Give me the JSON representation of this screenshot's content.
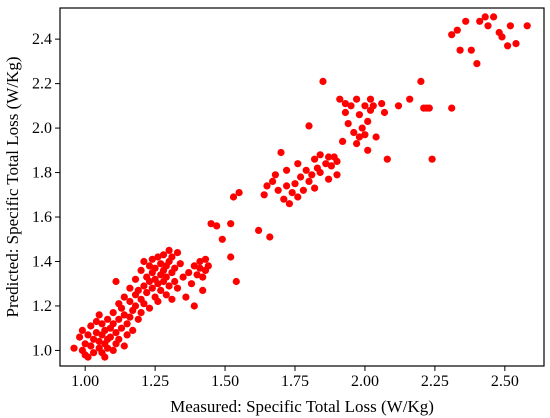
{
  "chart_data": {
    "type": "scatter",
    "xlabel": "Measured: Specific Total Loss (W/Kg)",
    "ylabel": "Predicted: Specific Total Loss (W/Kg)",
    "xlim": [
      0.91,
      2.64
    ],
    "ylim": [
      0.93,
      2.54
    ],
    "xticks": [
      1.0,
      1.25,
      1.5,
      1.75,
      2.0,
      2.25,
      2.5
    ],
    "xtick_labels": [
      "1.00",
      "1.25",
      "1.50",
      "1.75",
      "2.00",
      "2.25",
      "2.50"
    ],
    "yticks": [
      1.0,
      1.2,
      1.4,
      1.6,
      1.8,
      2.0,
      2.2,
      2.4
    ],
    "ytick_labels": [
      "1.0",
      "1.2",
      "1.4",
      "1.6",
      "1.8",
      "2.0",
      "2.2",
      "2.4"
    ],
    "grid": false,
    "marker_color": "#ff0000",
    "points": [
      [
        0.96,
        1.01
      ],
      [
        0.98,
        1.06
      ],
      [
        0.99,
        1.09
      ],
      [
        0.99,
        1.0
      ],
      [
        1.0,
        0.98
      ],
      [
        1.0,
        1.03
      ],
      [
        1.01,
        1.07
      ],
      [
        1.01,
        0.97
      ],
      [
        1.02,
        1.02
      ],
      [
        1.02,
        1.11
      ],
      [
        1.03,
        1.05
      ],
      [
        1.03,
        0.99
      ],
      [
        1.04,
        1.08
      ],
      [
        1.04,
        1.13
      ],
      [
        1.05,
        1.01
      ],
      [
        1.05,
        1.04
      ],
      [
        1.05,
        1.16
      ],
      [
        1.06,
        0.99
      ],
      [
        1.06,
        1.07
      ],
      [
        1.06,
        1.12
      ],
      [
        1.07,
        1.03
      ],
      [
        1.07,
        1.09
      ],
      [
        1.07,
        0.97
      ],
      [
        1.08,
        1.05
      ],
      [
        1.08,
        1.14
      ],
      [
        1.08,
        1.01
      ],
      [
        1.09,
        1.1
      ],
      [
        1.09,
        1.06
      ],
      [
        1.1,
        1.0
      ],
      [
        1.1,
        1.12
      ],
      [
        1.1,
        1.17
      ],
      [
        1.11,
        1.03
      ],
      [
        1.11,
        1.08
      ],
      [
        1.11,
        1.31
      ],
      [
        1.12,
        1.14
      ],
      [
        1.12,
        1.21
      ],
      [
        1.12,
        1.05
      ],
      [
        1.13,
        1.1
      ],
      [
        1.13,
        1.19
      ],
      [
        1.14,
        1.02
      ],
      [
        1.14,
        1.16
      ],
      [
        1.14,
        1.24
      ],
      [
        1.15,
        1.12
      ],
      [
        1.15,
        1.07
      ],
      [
        1.16,
        1.22
      ],
      [
        1.16,
        1.28
      ],
      [
        1.16,
        1.15
      ],
      [
        1.17,
        1.18
      ],
      [
        1.17,
        1.09
      ],
      [
        1.18,
        1.25
      ],
      [
        1.18,
        1.2
      ],
      [
        1.18,
        1.32
      ],
      [
        1.19,
        1.14
      ],
      [
        1.19,
        1.27
      ],
      [
        1.2,
        1.23
      ],
      [
        1.2,
        1.17
      ],
      [
        1.2,
        1.36
      ],
      [
        1.21,
        1.29
      ],
      [
        1.21,
        1.21
      ],
      [
        1.21,
        1.4
      ],
      [
        1.22,
        1.33
      ],
      [
        1.22,
        1.26
      ],
      [
        1.23,
        1.38
      ],
      [
        1.23,
        1.19
      ],
      [
        1.23,
        1.31
      ],
      [
        1.24,
        1.35
      ],
      [
        1.24,
        1.28
      ],
      [
        1.24,
        1.41
      ],
      [
        1.25,
        1.32
      ],
      [
        1.25,
        1.24
      ],
      [
        1.25,
        1.37
      ],
      [
        1.26,
        1.3
      ],
      [
        1.26,
        1.42
      ],
      [
        1.26,
        1.22
      ],
      [
        1.27,
        1.34
      ],
      [
        1.27,
        1.39
      ],
      [
        1.27,
        1.27
      ],
      [
        1.28,
        1.31
      ],
      [
        1.28,
        1.43
      ],
      [
        1.28,
        1.36
      ],
      [
        1.29,
        1.25
      ],
      [
        1.29,
        1.38
      ],
      [
        1.29,
        1.33
      ],
      [
        1.3,
        1.4
      ],
      [
        1.3,
        1.29
      ],
      [
        1.3,
        1.45
      ],
      [
        1.31,
        1.35
      ],
      [
        1.31,
        1.42
      ],
      [
        1.31,
        1.23
      ],
      [
        1.32,
        1.37
      ],
      [
        1.32,
        1.31
      ],
      [
        1.33,
        1.44
      ],
      [
        1.33,
        1.28
      ],
      [
        1.34,
        1.39
      ],
      [
        1.35,
        1.33
      ],
      [
        1.36,
        1.24
      ],
      [
        1.37,
        1.35
      ],
      [
        1.38,
        1.3
      ],
      [
        1.39,
        1.38
      ],
      [
        1.39,
        1.2
      ],
      [
        1.4,
        1.34
      ],
      [
        1.41,
        1.37
      ],
      [
        1.41,
        1.4
      ],
      [
        1.42,
        1.33
      ],
      [
        1.42,
        1.27
      ],
      [
        1.43,
        1.36
      ],
      [
        1.43,
        1.41
      ],
      [
        1.44,
        1.38
      ],
      [
        1.45,
        1.57
      ],
      [
        1.47,
        1.56
      ],
      [
        1.49,
        1.5
      ],
      [
        1.52,
        1.42
      ],
      [
        1.52,
        1.57
      ],
      [
        1.53,
        1.69
      ],
      [
        1.54,
        1.31
      ],
      [
        1.55,
        1.71
      ],
      [
        1.62,
        1.54
      ],
      [
        1.64,
        1.7
      ],
      [
        1.65,
        1.74
      ],
      [
        1.66,
        1.51
      ],
      [
        1.67,
        1.76
      ],
      [
        1.68,
        1.79
      ],
      [
        1.69,
        1.72
      ],
      [
        1.7,
        1.89
      ],
      [
        1.71,
        1.68
      ],
      [
        1.72,
        1.74
      ],
      [
        1.72,
        1.81
      ],
      [
        1.73,
        1.66
      ],
      [
        1.74,
        1.71
      ],
      [
        1.75,
        1.75
      ],
      [
        1.76,
        1.84
      ],
      [
        1.76,
        1.69
      ],
      [
        1.77,
        1.78
      ],
      [
        1.78,
        1.72
      ],
      [
        1.79,
        1.81
      ],
      [
        1.8,
        1.76
      ],
      [
        1.8,
        2.01
      ],
      [
        1.81,
        1.79
      ],
      [
        1.82,
        1.86
      ],
      [
        1.82,
        1.73
      ],
      [
        1.83,
        1.82
      ],
      [
        1.84,
        1.88
      ],
      [
        1.84,
        1.8
      ],
      [
        1.85,
        2.21
      ],
      [
        1.86,
        1.84
      ],
      [
        1.87,
        1.77
      ],
      [
        1.87,
        1.87
      ],
      [
        1.88,
        1.83
      ],
      [
        1.89,
        1.87
      ],
      [
        1.9,
        1.79
      ],
      [
        1.9,
        1.85
      ],
      [
        1.91,
        2.13
      ],
      [
        1.92,
        1.94
      ],
      [
        1.93,
        2.11
      ],
      [
        1.93,
        2.07
      ],
      [
        1.94,
        2.02
      ],
      [
        1.95,
        2.1
      ],
      [
        1.96,
        1.98
      ],
      [
        1.97,
        1.93
      ],
      [
        1.97,
        2.13
      ],
      [
        1.98,
        2.06
      ],
      [
        1.98,
        1.96
      ],
      [
        1.99,
        2.0
      ],
      [
        2.0,
        2.1
      ],
      [
        2.0,
        1.97
      ],
      [
        2.01,
        2.03
      ],
      [
        2.01,
        1.9
      ],
      [
        2.02,
        2.08
      ],
      [
        2.02,
        2.13
      ],
      [
        2.03,
        2.1
      ],
      [
        2.04,
        1.96
      ],
      [
        2.06,
        2.11
      ],
      [
        2.07,
        2.07
      ],
      [
        2.08,
        1.86
      ],
      [
        2.12,
        2.1
      ],
      [
        2.16,
        2.13
      ],
      [
        2.2,
        2.21
      ],
      [
        2.21,
        2.09
      ],
      [
        2.22,
        2.09
      ],
      [
        2.23,
        2.09
      ],
      [
        2.24,
        1.86
      ],
      [
        2.31,
        2.09
      ],
      [
        2.31,
        2.42
      ],
      [
        2.33,
        2.44
      ],
      [
        2.34,
        2.35
      ],
      [
        2.36,
        2.48
      ],
      [
        2.38,
        2.35
      ],
      [
        2.4,
        2.29
      ],
      [
        2.41,
        2.48
      ],
      [
        2.43,
        2.5
      ],
      [
        2.44,
        2.46
      ],
      [
        2.46,
        2.5
      ],
      [
        2.48,
        2.43
      ],
      [
        2.49,
        2.41
      ],
      [
        2.51,
        2.37
      ],
      [
        2.52,
        2.46
      ],
      [
        2.54,
        2.38
      ],
      [
        2.58,
        2.46
      ]
    ]
  }
}
